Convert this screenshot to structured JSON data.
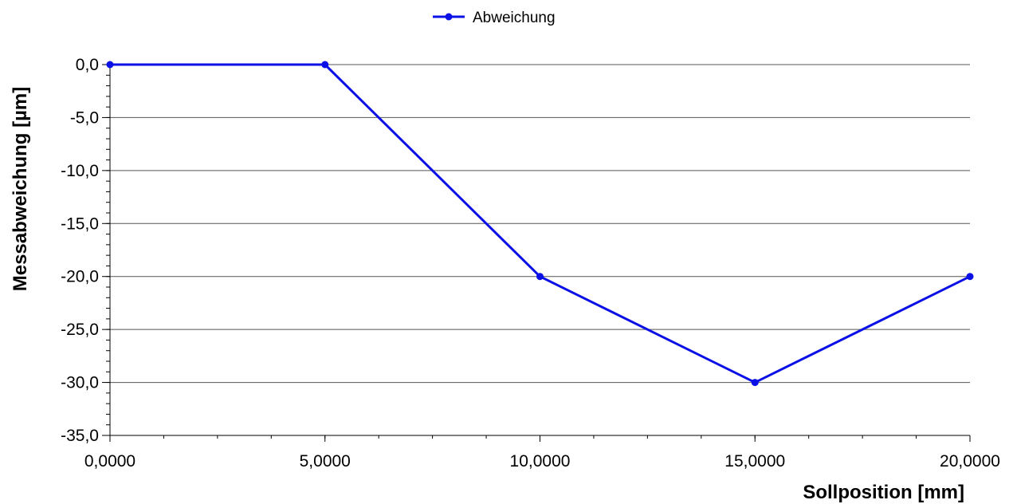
{
  "chart_data": {
    "type": "line",
    "xlabel": "Sollposition [mm]",
    "ylabel": "Messabweichung [µm]",
    "xlim": [
      0,
      20
    ],
    "ylim": [
      -35,
      0
    ],
    "x_ticks": [
      0,
      5,
      10,
      15,
      20
    ],
    "x_tick_labels": [
      "0,0000",
      "5,0000",
      "10,0000",
      "15,0000",
      "20,0000"
    ],
    "y_ticks": [
      0,
      -5,
      -10,
      -15,
      -20,
      -25,
      -30,
      -35
    ],
    "y_tick_labels": [
      "0,0",
      "-5,0",
      "-10,0",
      "-15,0",
      "-20,0",
      "-25,0",
      "-30,0",
      "-35,0"
    ],
    "grid": "horizontal",
    "legend_position": "top-center",
    "series": [
      {
        "name": "Abweichung",
        "color": "#0a10e6",
        "x": [
          0,
          5,
          10,
          15,
          20
        ],
        "values": [
          0,
          0,
          -20,
          -30,
          -20
        ]
      }
    ]
  }
}
